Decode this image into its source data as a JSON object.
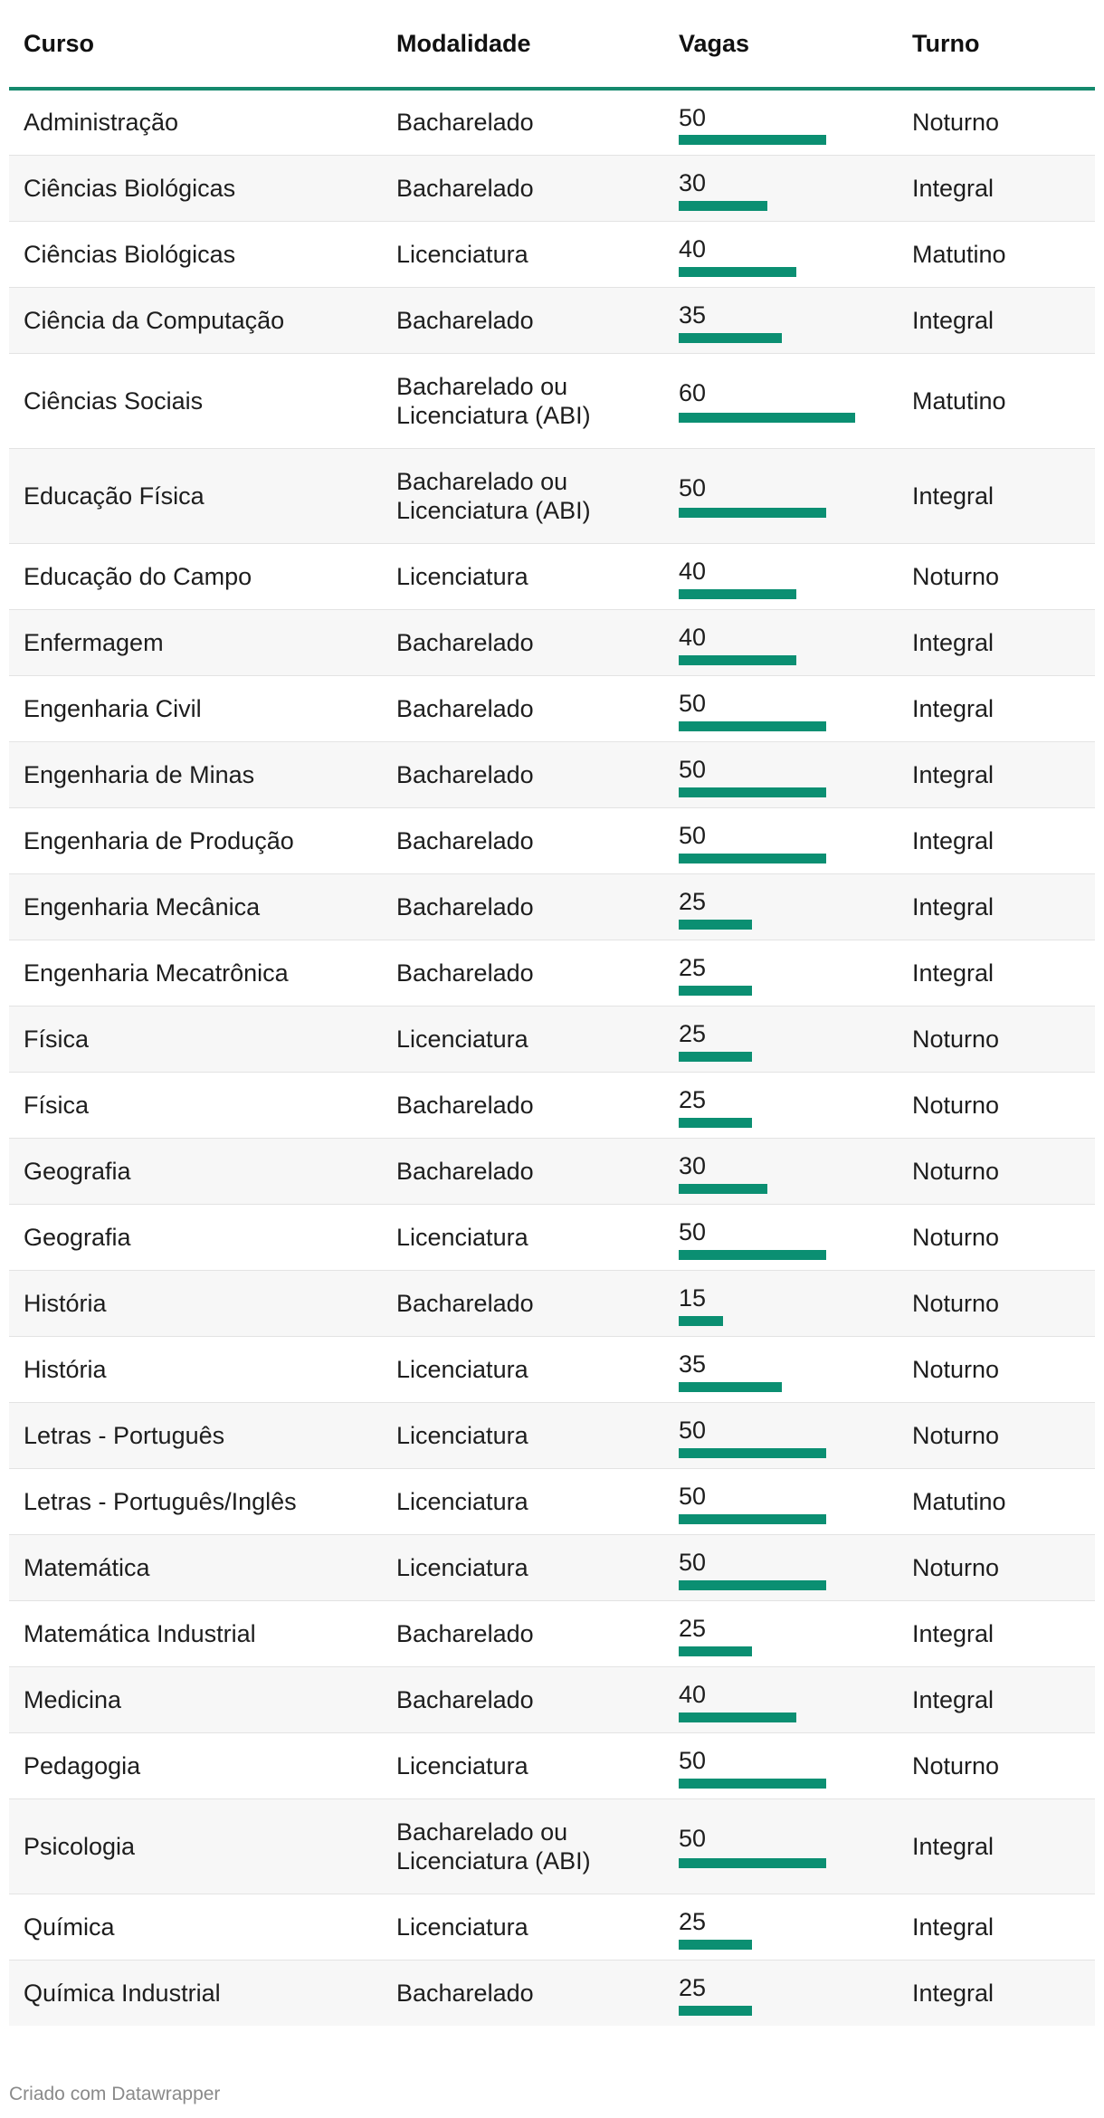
{
  "table": {
    "headers": [
      "Curso",
      "Modalidade",
      "Vagas",
      "Turno"
    ],
    "accent_color": "#0b8f72"
  },
  "chart_data": {
    "type": "table",
    "columns": [
      "Curso",
      "Modalidade",
      "Vagas",
      "Turno"
    ],
    "bar_column": "Vagas",
    "bar_max": 60,
    "rows": [
      {
        "curso": "Administração",
        "modalidade": "Bacharelado",
        "vagas": 50,
        "turno": "Noturno"
      },
      {
        "curso": "Ciências Biológicas",
        "modalidade": "Bacharelado",
        "vagas": 30,
        "turno": "Integral"
      },
      {
        "curso": "Ciências Biológicas",
        "modalidade": "Licenciatura",
        "vagas": 40,
        "turno": "Matutino"
      },
      {
        "curso": "Ciência da Computação",
        "modalidade": "Bacharelado",
        "vagas": 35,
        "turno": "Integral"
      },
      {
        "curso": "Ciências Sociais",
        "modalidade": "Bacharelado ou Licenciatura (ABI)",
        "vagas": 60,
        "turno": "Matutino"
      },
      {
        "curso": "Educação Física",
        "modalidade": "Bacharelado ou Licenciatura (ABI)",
        "vagas": 50,
        "turno": "Integral"
      },
      {
        "curso": "Educação do Campo",
        "modalidade": "Licenciatura",
        "vagas": 40,
        "turno": "Noturno"
      },
      {
        "curso": "Enfermagem",
        "modalidade": "Bacharelado",
        "vagas": 40,
        "turno": "Integral"
      },
      {
        "curso": "Engenharia Civil",
        "modalidade": "Bacharelado",
        "vagas": 50,
        "turno": "Integral"
      },
      {
        "curso": "Engenharia de Minas",
        "modalidade": "Bacharelado",
        "vagas": 50,
        "turno": "Integral"
      },
      {
        "curso": "Engenharia de Produção",
        "modalidade": "Bacharelado",
        "vagas": 50,
        "turno": "Integral"
      },
      {
        "curso": "Engenharia Mecânica",
        "modalidade": "Bacharelado",
        "vagas": 25,
        "turno": "Integral"
      },
      {
        "curso": "Engenharia Mecatrônica",
        "modalidade": "Bacharelado",
        "vagas": 25,
        "turno": "Integral"
      },
      {
        "curso": "Física",
        "modalidade": "Licenciatura",
        "vagas": 25,
        "turno": "Noturno"
      },
      {
        "curso": "Física",
        "modalidade": "Bacharelado",
        "vagas": 25,
        "turno": "Noturno"
      },
      {
        "curso": "Geografia",
        "modalidade": "Bacharelado",
        "vagas": 30,
        "turno": "Noturno"
      },
      {
        "curso": "Geografia",
        "modalidade": "Licenciatura",
        "vagas": 50,
        "turno": "Noturno"
      },
      {
        "curso": "História",
        "modalidade": "Bacharelado",
        "vagas": 15,
        "turno": "Noturno"
      },
      {
        "curso": "História",
        "modalidade": "Licenciatura",
        "vagas": 35,
        "turno": "Noturno"
      },
      {
        "curso": "Letras - Português",
        "modalidade": "Licenciatura",
        "vagas": 50,
        "turno": "Noturno"
      },
      {
        "curso": "Letras - Português/Inglês",
        "modalidade": "Licenciatura",
        "vagas": 50,
        "turno": "Matutino"
      },
      {
        "curso": "Matemática",
        "modalidade": "Licenciatura",
        "vagas": 50,
        "turno": "Noturno"
      },
      {
        "curso": "Matemática Industrial",
        "modalidade": "Bacharelado",
        "vagas": 25,
        "turno": "Integral"
      },
      {
        "curso": "Medicina",
        "modalidade": "Bacharelado",
        "vagas": 40,
        "turno": "Integral"
      },
      {
        "curso": "Pedagogia",
        "modalidade": "Licenciatura",
        "vagas": 50,
        "turno": "Noturno"
      },
      {
        "curso": "Psicologia",
        "modalidade": "Bacharelado ou Licenciatura (ABI)",
        "vagas": 50,
        "turno": "Integral"
      },
      {
        "curso": "Química",
        "modalidade": "Licenciatura",
        "vagas": 25,
        "turno": "Integral"
      },
      {
        "curso": "Química Industrial",
        "modalidade": "Bacharelado",
        "vagas": 25,
        "turno": "Integral"
      }
    ]
  },
  "footer": {
    "credit": "Criado com Datawrapper"
  }
}
